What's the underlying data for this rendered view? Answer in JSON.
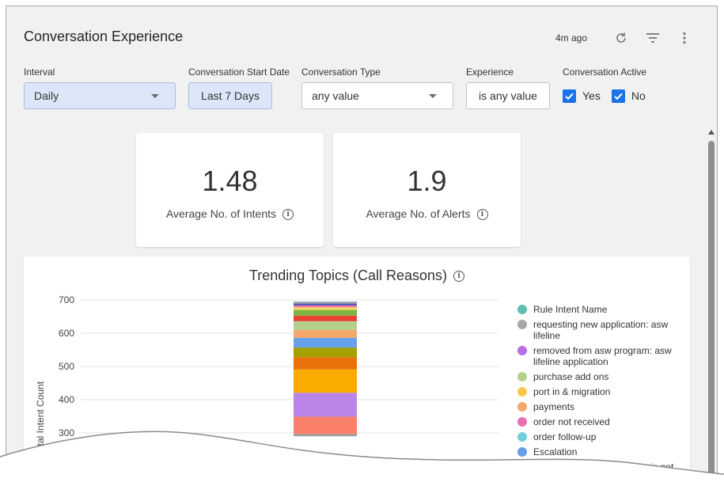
{
  "header": {
    "title": "Conversation Experience",
    "updated": "4m ago"
  },
  "filters": {
    "interval": {
      "label": "Interval",
      "value": "Daily"
    },
    "start_date": {
      "label": "Conversation Start Date",
      "value": "Last 7 Days"
    },
    "type": {
      "label": "Conversation Type",
      "value": "any value"
    },
    "experience": {
      "label": "Experience",
      "value": "is any value"
    },
    "active": {
      "label": "Conversation Active",
      "yes": "Yes",
      "no": "No"
    }
  },
  "kpis": [
    {
      "value": "1.48",
      "label": "Average No. of Intents"
    },
    {
      "value": "1.9",
      "label": "Average No. of Alerts"
    }
  ],
  "chart_data": {
    "type": "bar",
    "title": "Trending Topics (Call Reasons)",
    "ylabel": "Total Intent Count",
    "yticks": [
      "700",
      "600",
      "500",
      "400",
      "300"
    ],
    "ylim": [
      300,
      700
    ],
    "grid": true,
    "legend_position": "right",
    "series": [
      {
        "name": "",
        "start": 290,
        "end": 297,
        "color": "#9e9e9e"
      },
      {
        "name": "",
        "start": 297,
        "end": 349,
        "color": "#fb8069"
      },
      {
        "name": "",
        "start": 349,
        "end": 421,
        "color": "#bb84e9"
      },
      {
        "name": "",
        "start": 421,
        "end": 491,
        "color": "#f9ab00"
      },
      {
        "name": "",
        "start": 491,
        "end": 528,
        "color": "#e8710a"
      },
      {
        "name": "",
        "start": 528,
        "end": 557,
        "color": "#a4a000"
      },
      {
        "name": "",
        "start": 557,
        "end": 586,
        "color": "#66a1ec"
      },
      {
        "name": "",
        "start": 586,
        "end": 610,
        "color": "#f3a76a"
      },
      {
        "name": "",
        "start": 610,
        "end": 636,
        "color": "#b3d18c"
      },
      {
        "name": "",
        "start": 636,
        "end": 653,
        "color": "#e94235"
      },
      {
        "name": "",
        "start": 653,
        "end": 670,
        "color": "#7cb342"
      },
      {
        "name": "",
        "start": 670,
        "end": 678,
        "color": "#f4d75c"
      },
      {
        "name": "",
        "start": 678,
        "end": 684,
        "color": "#ee6ea5"
      },
      {
        "name": "",
        "start": 684,
        "end": 689,
        "color": "#3f51b5"
      },
      {
        "name": "",
        "start": 689,
        "end": 695,
        "color": "#9aa0a6"
      }
    ],
    "legend": [
      {
        "label": "Rule Intent Name",
        "color": "#62bfb6"
      },
      {
        "label": "requesting new application: asw lifeline",
        "color": "#a7a7a7"
      },
      {
        "label": "removed from asw program: asw lifeline application",
        "color": "#b86ee9"
      },
      {
        "label": "purchase add ons",
        "color": "#b3d18c"
      },
      {
        "label": "port in & migration",
        "color": "#f6c94e"
      },
      {
        "label": "payments",
        "color": "#f3a76a"
      },
      {
        "label": "order not received",
        "color": "#ea6fb2"
      },
      {
        "label": "order follow-up",
        "color": "#6fd0dc"
      },
      {
        "label": "Escalation",
        "color": "#6a9ee7"
      },
      {
        "label": "device replacement: device is not",
        "color": "#f07a6a"
      }
    ]
  }
}
